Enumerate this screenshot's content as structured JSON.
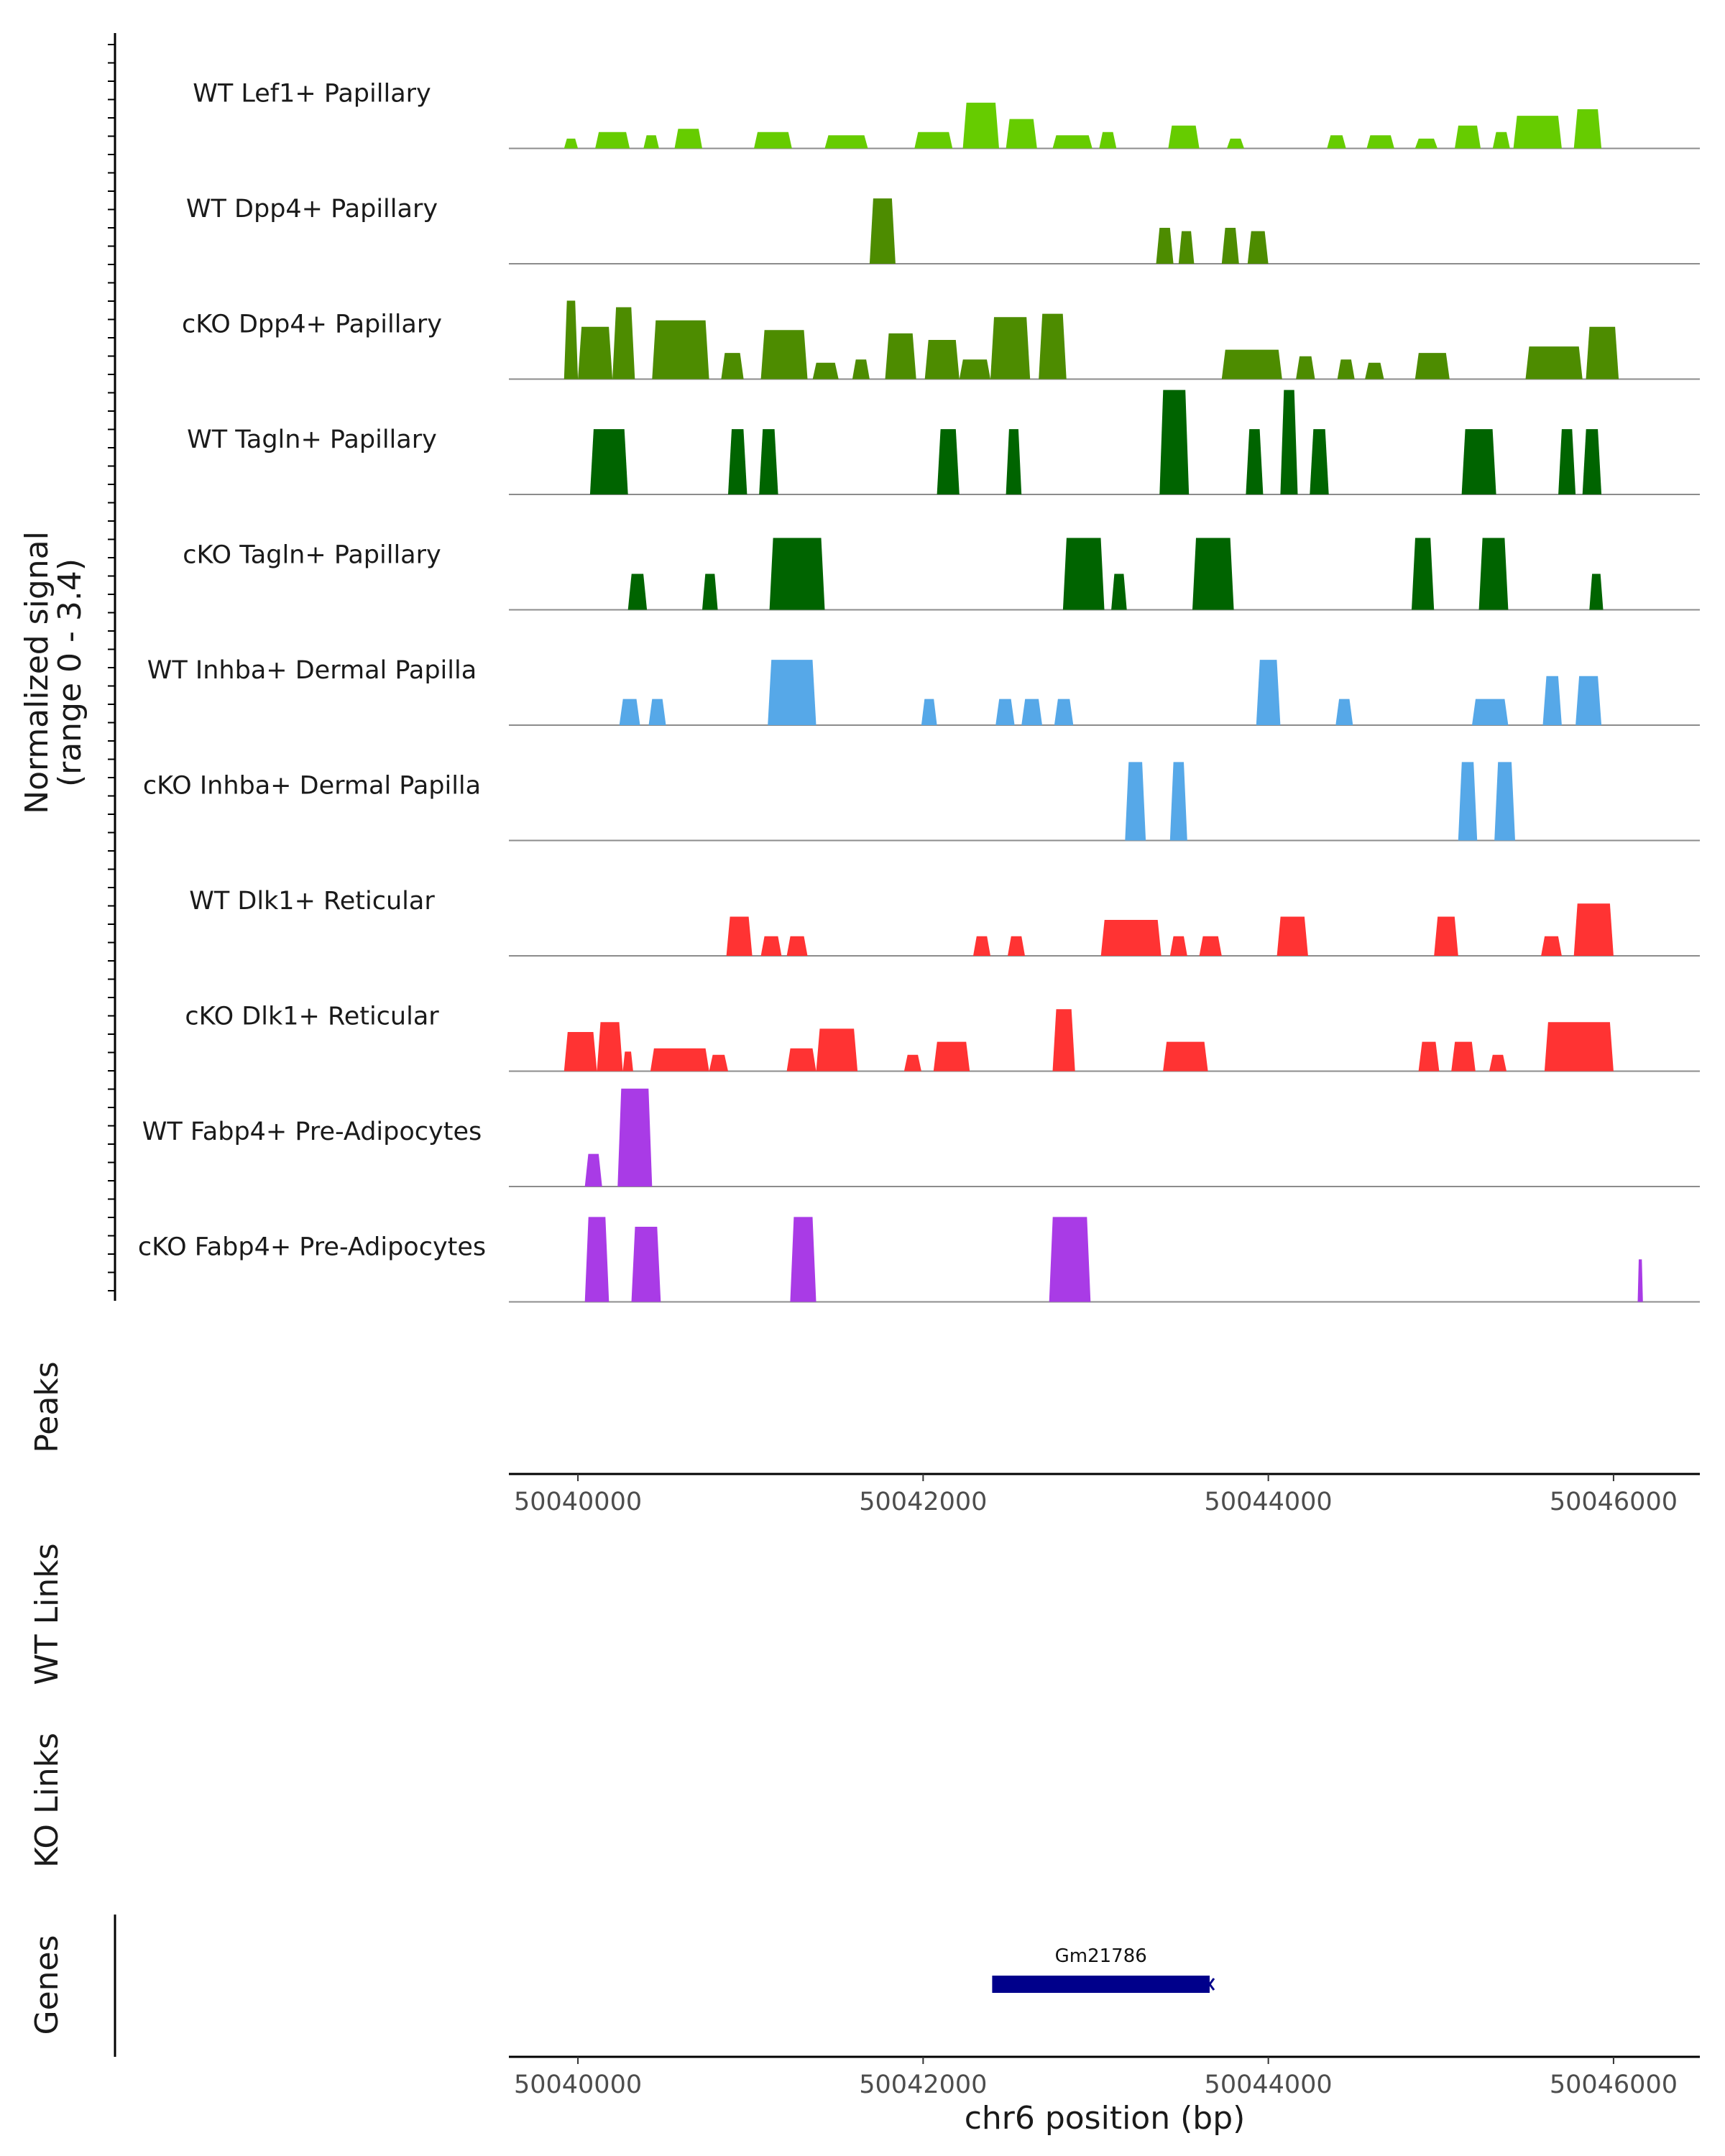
{
  "chart_data": {
    "type": "area",
    "title": "",
    "chromosome": "chr6",
    "xlabel": "chr6 position (bp)",
    "xlim": [
      50039600,
      50046500
    ],
    "x_ticks": [
      50040000,
      50042000,
      50044000,
      50046000
    ],
    "x_tick_labels": [
      "50040000",
      "50042000",
      "50044000",
      "50046000"
    ],
    "ylabel_line1": "Normalized signal",
    "ylabel_line2": "(range 0 - 3.4)",
    "ylim": [
      0,
      3.4
    ],
    "panel_labels": {
      "peaks": "Peaks",
      "wt_links": "WT Links",
      "ko_links": "KO Links",
      "genes": "Genes"
    },
    "series": [
      {
        "name": "WT Lef1+ Papillary",
        "color": "#66cc00",
        "segments": [
          {
            "s": 50039920,
            "e": 50040000,
            "v": 0.3
          },
          {
            "s": 50040100,
            "e": 50040300,
            "v": 0.5
          },
          {
            "s": 50040380,
            "e": 50040470,
            "v": 0.4
          },
          {
            "s": 50040560,
            "e": 50040720,
            "v": 0.6
          },
          {
            "s": 50041020,
            "e": 50041240,
            "v": 0.5
          },
          {
            "s": 50041430,
            "e": 50041680,
            "v": 0.4
          },
          {
            "s": 50041950,
            "e": 50042170,
            "v": 0.5
          },
          {
            "s": 50042230,
            "e": 50042440,
            "v": 1.4
          },
          {
            "s": 50042480,
            "e": 50042660,
            "v": 0.9
          },
          {
            "s": 50042750,
            "e": 50042980,
            "v": 0.4
          },
          {
            "s": 50043020,
            "e": 50043120,
            "v": 0.5
          },
          {
            "s": 50043420,
            "e": 50043600,
            "v": 0.7
          },
          {
            "s": 50043760,
            "e": 50043860,
            "v": 0.3
          },
          {
            "s": 50044340,
            "e": 50044450,
            "v": 0.4
          },
          {
            "s": 50044570,
            "e": 50044730,
            "v": 0.4
          },
          {
            "s": 50044850,
            "e": 50044980,
            "v": 0.3
          },
          {
            "s": 50045080,
            "e": 50045230,
            "v": 0.7
          },
          {
            "s": 50045300,
            "e": 50045400,
            "v": 0.5
          },
          {
            "s": 50045420,
            "e": 50045700,
            "v": 1.0
          },
          {
            "s": 50045770,
            "e": 50045930,
            "v": 1.2
          }
        ]
      },
      {
        "name": "WT Dpp4+ Papillary",
        "color": "#4d8c00",
        "segments": [
          {
            "s": 50041690,
            "e": 50041840,
            "v": 2.0
          },
          {
            "s": 50043350,
            "e": 50043450,
            "v": 1.1
          },
          {
            "s": 50043480,
            "e": 50043570,
            "v": 1.0
          },
          {
            "s": 50043730,
            "e": 50043830,
            "v": 1.1
          },
          {
            "s": 50043880,
            "e": 50044000,
            "v": 1.0
          }
        ]
      },
      {
        "name": "cKO Dpp4+ Papillary",
        "color": "#4d8c00",
        "segments": [
          {
            "s": 50039920,
            "e": 50040000,
            "v": 2.4
          },
          {
            "s": 50040000,
            "e": 50040200,
            "v": 1.6
          },
          {
            "s": 50040200,
            "e": 50040330,
            "v": 2.2
          },
          {
            "s": 50040430,
            "e": 50040760,
            "v": 1.8
          },
          {
            "s": 50040830,
            "e": 50040960,
            "v": 0.8
          },
          {
            "s": 50041060,
            "e": 50041330,
            "v": 1.5
          },
          {
            "s": 50041360,
            "e": 50041510,
            "v": 0.5
          },
          {
            "s": 50041590,
            "e": 50041690,
            "v": 0.6
          },
          {
            "s": 50041780,
            "e": 50041960,
            "v": 1.4
          },
          {
            "s": 50042010,
            "e": 50042210,
            "v": 1.2
          },
          {
            "s": 50042210,
            "e": 50042390,
            "v": 0.6
          },
          {
            "s": 50042390,
            "e": 50042620,
            "v": 1.9
          },
          {
            "s": 50042670,
            "e": 50042830,
            "v": 2.0
          },
          {
            "s": 50043730,
            "e": 50044080,
            "v": 0.9
          },
          {
            "s": 50044160,
            "e": 50044270,
            "v": 0.7
          },
          {
            "s": 50044400,
            "e": 50044500,
            "v": 0.6
          },
          {
            "s": 50044560,
            "e": 50044670,
            "v": 0.5
          },
          {
            "s": 50044850,
            "e": 50045050,
            "v": 0.8
          },
          {
            "s": 50045490,
            "e": 50045820,
            "v": 1.0
          },
          {
            "s": 50045840,
            "e": 50046030,
            "v": 1.6
          }
        ]
      },
      {
        "name": "WT Tagln+ Papillary",
        "color": "#006400",
        "segments": [
          {
            "s": 50040070,
            "e": 50040290,
            "v": 2.0
          },
          {
            "s": 50040870,
            "e": 50040980,
            "v": 2.0
          },
          {
            "s": 50041050,
            "e": 50041160,
            "v": 2.0
          },
          {
            "s": 50042080,
            "e": 50042210,
            "v": 2.0
          },
          {
            "s": 50042480,
            "e": 50042570,
            "v": 2.0
          },
          {
            "s": 50043370,
            "e": 50043540,
            "v": 3.2
          },
          {
            "s": 50043870,
            "e": 50043970,
            "v": 2.0
          },
          {
            "s": 50044070,
            "e": 50044170,
            "v": 3.2
          },
          {
            "s": 50044240,
            "e": 50044350,
            "v": 2.0
          },
          {
            "s": 50045120,
            "e": 50045320,
            "v": 2.0
          },
          {
            "s": 50045680,
            "e": 50045780,
            "v": 2.0
          },
          {
            "s": 50045820,
            "e": 50045930,
            "v": 2.0
          }
        ]
      },
      {
        "name": "cKO Tagln+ Papillary",
        "color": "#006400",
        "segments": [
          {
            "s": 50040290,
            "e": 50040400,
            "v": 1.1
          },
          {
            "s": 50040720,
            "e": 50040810,
            "v": 1.1
          },
          {
            "s": 50041110,
            "e": 50041430,
            "v": 2.2
          },
          {
            "s": 50042810,
            "e": 50043050,
            "v": 2.2
          },
          {
            "s": 50043090,
            "e": 50043180,
            "v": 1.1
          },
          {
            "s": 50043560,
            "e": 50043800,
            "v": 2.2
          },
          {
            "s": 50044830,
            "e": 50044960,
            "v": 2.2
          },
          {
            "s": 50045220,
            "e": 50045390,
            "v": 2.2
          },
          {
            "s": 50045860,
            "e": 50045940,
            "v": 1.1
          }
        ]
      },
      {
        "name": "WT Inhba+ Dermal Papilla",
        "color": "#56a8e8",
        "segments": [
          {
            "s": 50040240,
            "e": 50040360,
            "v": 0.8
          },
          {
            "s": 50040410,
            "e": 50040510,
            "v": 0.8
          },
          {
            "s": 50041100,
            "e": 50041380,
            "v": 2.0
          },
          {
            "s": 50041990,
            "e": 50042080,
            "v": 0.8
          },
          {
            "s": 50042420,
            "e": 50042530,
            "v": 0.8
          },
          {
            "s": 50042570,
            "e": 50042690,
            "v": 0.8
          },
          {
            "s": 50042760,
            "e": 50042870,
            "v": 0.8
          },
          {
            "s": 50043930,
            "e": 50044070,
            "v": 2.0
          },
          {
            "s": 50044390,
            "e": 50044490,
            "v": 0.8
          },
          {
            "s": 50045180,
            "e": 50045390,
            "v": 0.8
          },
          {
            "s": 50045590,
            "e": 50045700,
            "v": 1.5
          },
          {
            "s": 50045780,
            "e": 50045930,
            "v": 1.5
          }
        ]
      },
      {
        "name": "cKO Inhba+ Dermal Papilla",
        "color": "#56a8e8",
        "segments": [
          {
            "s": 50043170,
            "e": 50043290,
            "v": 2.4
          },
          {
            "s": 50043430,
            "e": 50043530,
            "v": 2.4
          },
          {
            "s": 50045100,
            "e": 50045210,
            "v": 2.4
          },
          {
            "s": 50045310,
            "e": 50045430,
            "v": 2.4
          }
        ]
      },
      {
        "name": "WT Dlk1+ Reticular",
        "color": "#ff3333",
        "segments": [
          {
            "s": 50040860,
            "e": 50041010,
            "v": 1.2
          },
          {
            "s": 50041060,
            "e": 50041180,
            "v": 0.6
          },
          {
            "s": 50041210,
            "e": 50041330,
            "v": 0.6
          },
          {
            "s": 50042290,
            "e": 50042390,
            "v": 0.6
          },
          {
            "s": 50042490,
            "e": 50042590,
            "v": 0.6
          },
          {
            "s": 50043030,
            "e": 50043380,
            "v": 1.1
          },
          {
            "s": 50043430,
            "e": 50043530,
            "v": 0.6
          },
          {
            "s": 50043600,
            "e": 50043730,
            "v": 0.6
          },
          {
            "s": 50044050,
            "e": 50044230,
            "v": 1.2
          },
          {
            "s": 50044960,
            "e": 50045100,
            "v": 1.2
          },
          {
            "s": 50045580,
            "e": 50045700,
            "v": 0.6
          },
          {
            "s": 50045770,
            "e": 50046000,
            "v": 1.6
          }
        ]
      },
      {
        "name": "cKO Dlk1+ Reticular",
        "color": "#ff3333",
        "segments": [
          {
            "s": 50039920,
            "e": 50040110,
            "v": 1.2
          },
          {
            "s": 50040110,
            "e": 50040260,
            "v": 1.5
          },
          {
            "s": 50040260,
            "e": 50040320,
            "v": 0.6
          },
          {
            "s": 50040420,
            "e": 50040760,
            "v": 0.7
          },
          {
            "s": 50040760,
            "e": 50040870,
            "v": 0.5
          },
          {
            "s": 50041210,
            "e": 50041380,
            "v": 0.7
          },
          {
            "s": 50041380,
            "e": 50041620,
            "v": 1.3
          },
          {
            "s": 50041890,
            "e": 50041990,
            "v": 0.5
          },
          {
            "s": 50042060,
            "e": 50042270,
            "v": 0.9
          },
          {
            "s": 50042750,
            "e": 50042880,
            "v": 1.9
          },
          {
            "s": 50043390,
            "e": 50043650,
            "v": 0.9
          },
          {
            "s": 50044870,
            "e": 50044990,
            "v": 0.9
          },
          {
            "s": 50045060,
            "e": 50045200,
            "v": 0.9
          },
          {
            "s": 50045280,
            "e": 50045380,
            "v": 0.5
          },
          {
            "s": 50045600,
            "e": 50046000,
            "v": 1.5
          }
        ]
      },
      {
        "name": "WT Fabp4+ Pre-Adipocytes",
        "color": "#a93be6",
        "segments": [
          {
            "s": 50040040,
            "e": 50040140,
            "v": 1.0
          },
          {
            "s": 50040230,
            "e": 50040430,
            "v": 3.0
          }
        ]
      },
      {
        "name": "cKO Fabp4+ Pre-Adipocytes",
        "color": "#a93be6",
        "segments": [
          {
            "s": 50040040,
            "e": 50040180,
            "v": 2.6
          },
          {
            "s": 50040310,
            "e": 50040480,
            "v": 2.3
          },
          {
            "s": 50041230,
            "e": 50041380,
            "v": 2.6
          },
          {
            "s": 50042730,
            "e": 50042970,
            "v": 2.6
          },
          {
            "s": 50046140,
            "e": 50046170,
            "v": 1.3
          }
        ]
      }
    ],
    "genes": [
      {
        "name": "Gm21786",
        "start": 50042400,
        "end": 50043660,
        "strand": "-",
        "color": "#00008b"
      }
    ]
  }
}
